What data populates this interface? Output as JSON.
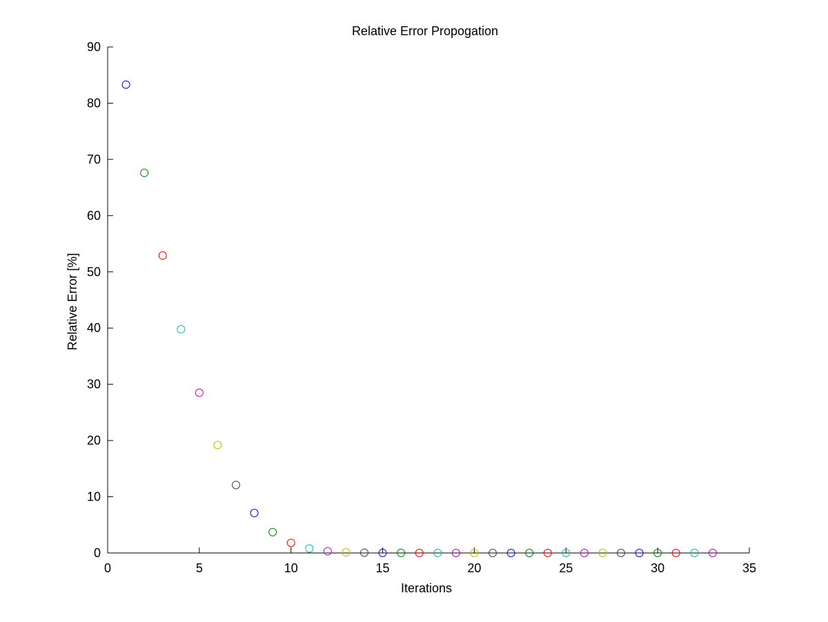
{
  "chart_data": {
    "type": "scatter",
    "title": "Relative Error Propogation",
    "xlabel": "Iterations",
    "ylabel": "Relative Error [%]",
    "xlim": [
      0,
      35
    ],
    "ylim": [
      0,
      90
    ],
    "xticks": [
      0,
      5,
      10,
      15,
      20,
      25,
      30,
      35
    ],
    "yticks": [
      0,
      10,
      20,
      30,
      40,
      50,
      60,
      70,
      80,
      90
    ],
    "grid": false,
    "marker": "open-circle",
    "color_cycle": [
      "#0000ff",
      "#008000",
      "#ff0000",
      "#00bfbf",
      "#bf00bf",
      "#bfbf00",
      "#404040"
    ],
    "points": [
      {
        "x": 1,
        "y": 83.3
      },
      {
        "x": 2,
        "y": 67.6
      },
      {
        "x": 3,
        "y": 52.9
      },
      {
        "x": 4,
        "y": 39.8
      },
      {
        "x": 5,
        "y": 28.5
      },
      {
        "x": 6,
        "y": 19.2
      },
      {
        "x": 7,
        "y": 12.1
      },
      {
        "x": 8,
        "y": 7.1
      },
      {
        "x": 9,
        "y": 3.7
      },
      {
        "x": 10,
        "y": 1.8
      },
      {
        "x": 11,
        "y": 0.8
      },
      {
        "x": 12,
        "y": 0.3
      },
      {
        "x": 13,
        "y": 0.1
      },
      {
        "x": 14,
        "y": 0.05
      },
      {
        "x": 15,
        "y": 0.02
      },
      {
        "x": 16,
        "y": 0.01
      },
      {
        "x": 17,
        "y": 0
      },
      {
        "x": 18,
        "y": 0
      },
      {
        "x": 19,
        "y": 0
      },
      {
        "x": 20,
        "y": 0
      },
      {
        "x": 21,
        "y": 0
      },
      {
        "x": 22,
        "y": 0
      },
      {
        "x": 23,
        "y": 0
      },
      {
        "x": 24,
        "y": 0
      },
      {
        "x": 25,
        "y": 0
      },
      {
        "x": 26,
        "y": 0
      },
      {
        "x": 27,
        "y": 0
      },
      {
        "x": 28,
        "y": 0
      },
      {
        "x": 29,
        "y": 0
      },
      {
        "x": 30,
        "y": 0
      },
      {
        "x": 31,
        "y": 0
      },
      {
        "x": 32,
        "y": 0
      },
      {
        "x": 33,
        "y": 0
      }
    ]
  }
}
